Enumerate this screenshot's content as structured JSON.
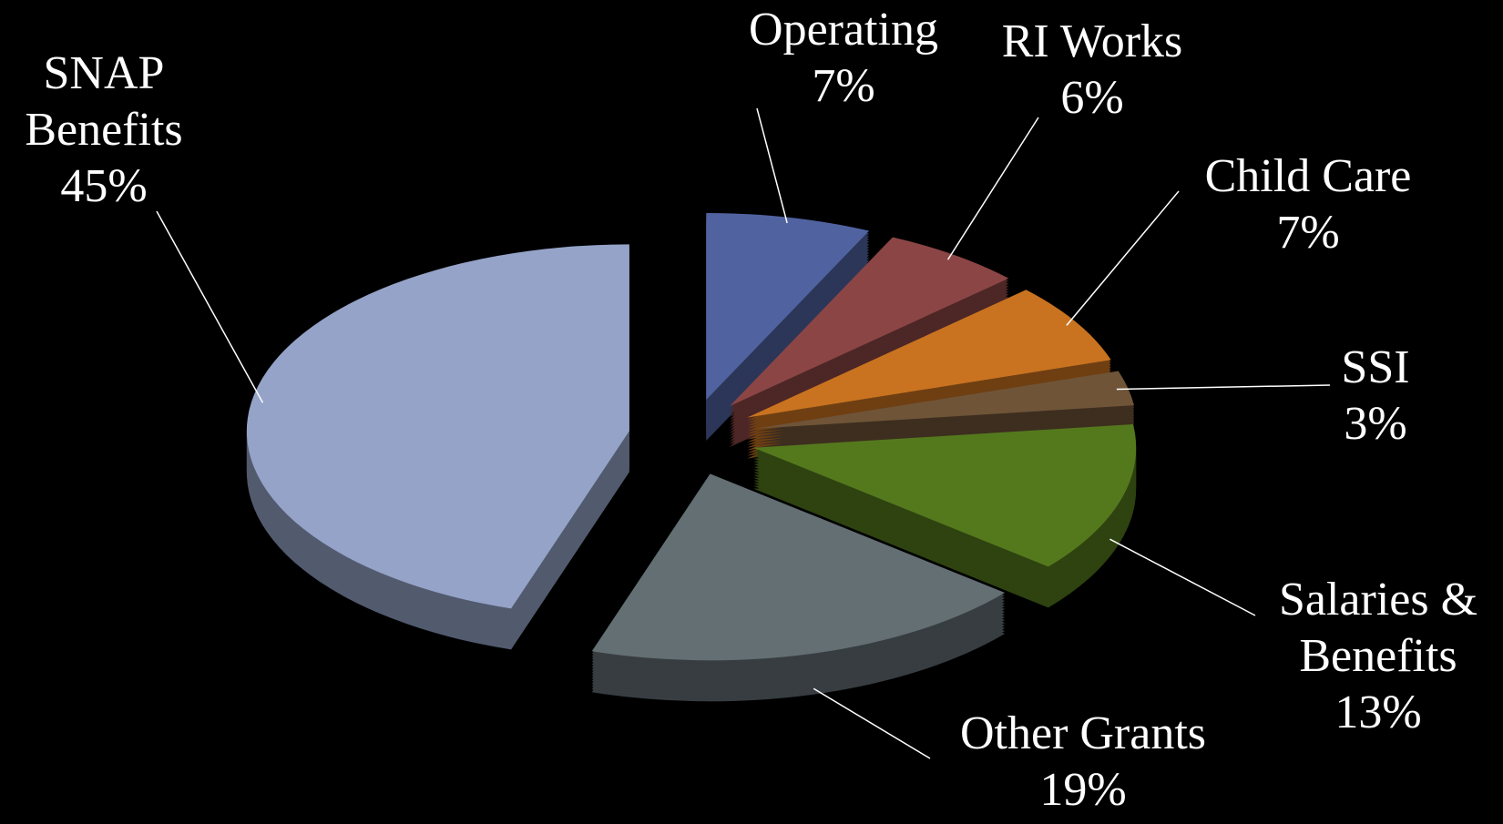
{
  "chart_data": {
    "type": "pie",
    "categories": [
      "Operating",
      "RI Works",
      "Child Care",
      "SSI",
      "Salaries & Benefits",
      "Other Grants",
      "SNAP Benefits"
    ],
    "values": [
      7,
      6,
      7,
      3,
      13,
      19,
      45
    ],
    "value_labels": [
      "7%",
      "6%",
      "7%",
      "3%",
      "13%",
      "19%",
      "45%"
    ],
    "colors": [
      "#5063a0",
      "#8c4545",
      "#c97320",
      "#6f5438",
      "#54791d",
      "#646f74",
      "#95a3c8"
    ]
  }
}
